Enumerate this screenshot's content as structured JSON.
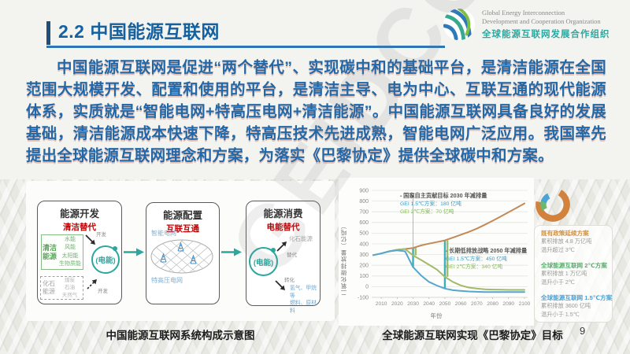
{
  "watermark": "GEIDCO",
  "page_number": "9",
  "colors": {
    "accent_blue": "#2e75b5",
    "title_blue": "#15609f",
    "body_text_blue": "#2268a8",
    "diagram_red": "#c00000",
    "teal": "#2aa79e",
    "logo_teal": "#2ba9a1"
  },
  "header": {
    "title": "2.2 中国能源互联网",
    "logo": {
      "line1": "Global Energy Interconnection",
      "line2": "Development and Cooperation Organization",
      "line3": "全球能源互联网发展合作组织"
    }
  },
  "paragraph": "中国能源互联网是促进“两个替代”、实现碳中和的基础平台，是清洁能源在全国范围大规模开发、配置和使用的平台，是清洁主导、电为中心、互联互通的现代能源体系，实质就是“智能电网+特高压电网+清洁能源”。中国能源互联网具备良好的发展基础，清洁能源成本快速下降，特高压技术先进成熟，智能电网广泛应用。我国率先提出全球能源互联网理念和方案，为落实《巴黎协定》提供全球碳中和方案。",
  "diagram": {
    "caption": "中国能源互联网系统构成示意图",
    "boxes": [
      {
        "title": "能源开发",
        "subtitle": "清洁替代",
        "clean_label": "清洁能源",
        "clean_items": [
          "水能",
          "风能",
          "太阳能",
          "生物质能"
        ],
        "fossil_label": "化石能源",
        "fossil_items": [
          "煤炭",
          "石油",
          "天然气"
        ],
        "develop_label": "开发",
        "circle": "(电能)"
      },
      {
        "title": "能源配置",
        "subtitle": "互联互通",
        "top_label": "智能电网",
        "bottom_label": "特高压电网"
      },
      {
        "title": "能源消费",
        "subtitle": "电能替代",
        "circle": "(电能)",
        "arrow1_label": "替代",
        "arrow1_target": "化石能源",
        "arrow2_label": "转化",
        "arrow2_target_line1": "氢气、甲烷等",
        "arrow2_target_line2": "燃料、原材料"
      }
    ]
  },
  "chart_data": {
    "type": "line",
    "title": "全球能源互联网实现《巴黎协定》目标",
    "xlabel": "年份",
    "ylabel": "二氧化碳排放量（亿吨）",
    "xlim": [
      2004,
      2102
    ],
    "ylim": [
      -100,
      900
    ],
    "yticks": [
      -100,
      0,
      100,
      200,
      300,
      400,
      500,
      600,
      700,
      800,
      900
    ],
    "xticks": [
      2010,
      2020,
      2030,
      2040,
      2050,
      2060,
      2070,
      2080,
      2090,
      2100
    ],
    "grid": true,
    "x": [
      2005,
      2010,
      2015,
      2020,
      2025,
      2030,
      2035,
      2040,
      2045,
      2050,
      2055,
      2060,
      2065,
      2070,
      2075,
      2080,
      2085,
      2090,
      2095,
      2100
    ],
    "series": [
      {
        "name": "既有政策延续方案",
        "color": "#c18a58",
        "values": [
          295,
          310,
          330,
          345,
          352,
          362,
          385,
          402,
          417,
          432,
          458,
          485,
          512,
          542,
          578,
          616,
          655,
          696,
          737,
          778
        ]
      },
      {
        "name": "全球能源互联网 2℃方案",
        "color": "#a3b96b",
        "values": [
          295,
          310,
          330,
          345,
          352,
          292,
          250,
          205,
          160,
          92,
          45,
          12,
          -8,
          -18,
          -24,
          -27,
          -29,
          -30,
          -30,
          -30
        ]
      },
      {
        "name": "全球能源互联网 1.5℃方案",
        "color": "#55a7ce",
        "values": [
          295,
          310,
          330,
          340,
          330,
          182,
          105,
          45,
          10,
          -18,
          -33,
          -40,
          -45,
          -48,
          -50,
          -50,
          -50,
          -50,
          -50,
          -50
        ]
      }
    ],
    "markers": {
      "vline_year": 2030,
      "vline_top": 848,
      "vline_bottom": 330
    },
    "bars": [
      {
        "x": 2030,
        "from": 182,
        "to": 362,
        "color": "#3ab0b8"
      },
      {
        "x": 2031.6,
        "from": 292,
        "to": 362,
        "color": "#9cbf68"
      },
      {
        "x": 2050,
        "from": -18,
        "to": 432,
        "color": "#3ab0b8"
      },
      {
        "x": 2051.6,
        "from": 92,
        "to": 432,
        "color": "#9cbf68"
      }
    ],
    "annotations": [
      {
        "title": "国家自主贡献目标 2030 年减排量",
        "line1": "GEI 1.5℃方案：180 亿吨",
        "line2": "GEI 2℃方案：70 亿吨"
      },
      {
        "title": "长期低排放战略 2050 年减排量",
        "line1": "GEI 1.5℃方案：450 亿吨",
        "line2": "GEI 2℃方案：340 亿吨"
      }
    ],
    "legend": [
      {
        "title": "既有政策延续方案",
        "color": "#d2913f",
        "line1": "累积排放 4.8 万亿吨",
        "line2": "温升超过 3℃"
      },
      {
        "title": "全球能源互联网 2℃方案",
        "color": "#5bae6e",
        "line1": "累积排放 1 万亿吨",
        "line2": "温升小于 2℃"
      },
      {
        "title": "全球能源互联网 1.5℃方案",
        "color": "#4ba3d6",
        "line1": "累积排放 3600 亿吨",
        "line2": "温升小于 1.5℃"
      }
    ],
    "legend_position": "right"
  }
}
